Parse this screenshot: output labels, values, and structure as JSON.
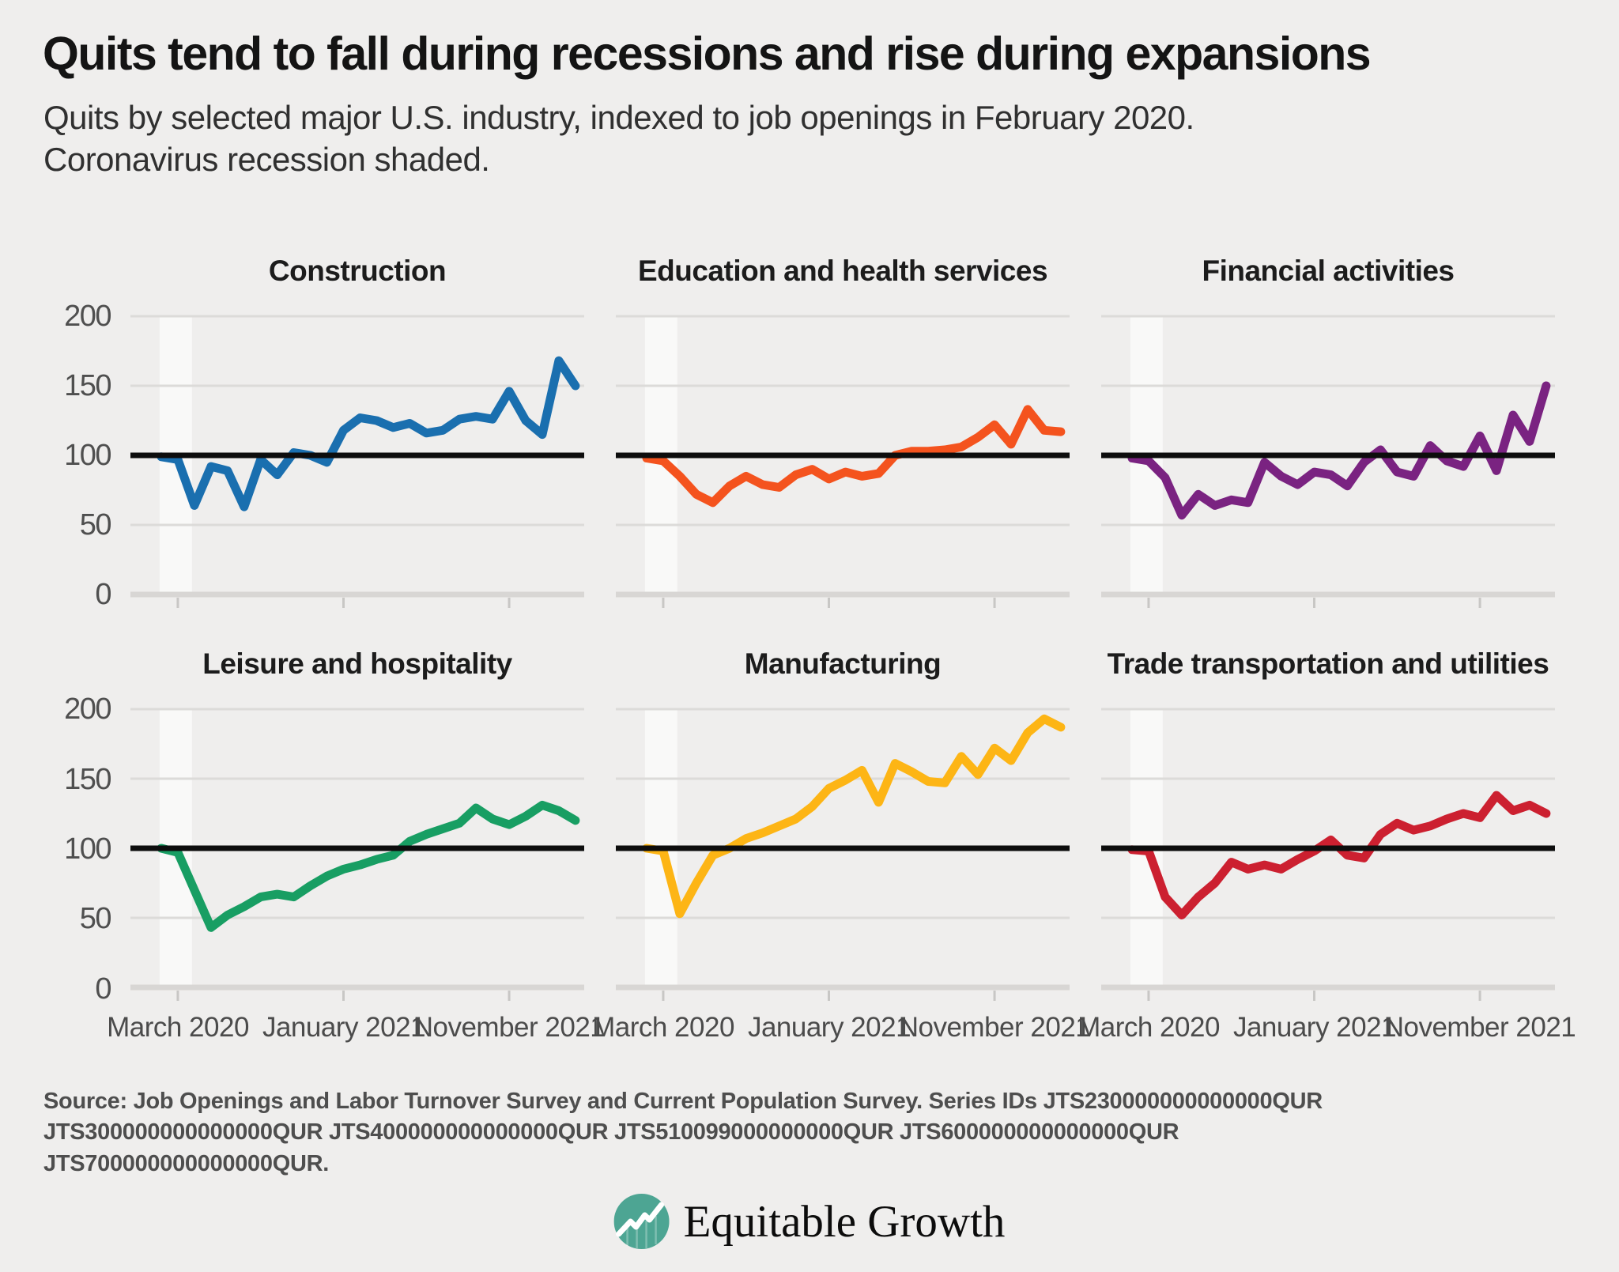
{
  "header": {
    "title": "Quits tend to fall during recessions and rise during expansions",
    "subtitle_line1": "Quits by selected major U.S. industry, indexed to job openings in February 2020.",
    "subtitle_line2": "Coronavirus recession shaded."
  },
  "axis": {
    "y_ticks": [
      "200",
      "150",
      "100",
      "50",
      "0"
    ],
    "x_ticks": [
      "March 2020",
      "January 2021",
      "November 2021"
    ]
  },
  "colors": {
    "background": "#efeeed",
    "gridline": "#dcdbd9",
    "zero_axis": "#d8d6d4",
    "tick": "#c8c7c5",
    "baseline": "#0d0d0d",
    "recession_band": "#f9f9f8",
    "logo_teal": "#4da593"
  },
  "chart_config": {
    "ylim": [
      0,
      200
    ],
    "y_gridlines": [
      0,
      50,
      100,
      150,
      200
    ],
    "baseline_value": 100,
    "x_start": "February 2020",
    "x_end": "March 2022",
    "frequency": "monthly",
    "x_tick_month_indices": [
      1,
      11,
      21
    ],
    "recession_band_months": [
      -0.1,
      1.85
    ],
    "grid": "horizontal only",
    "legend": "none"
  },
  "chart_data": [
    {
      "type": "line",
      "title": "Construction",
      "color": "#1a6faf",
      "values": [
        99,
        97,
        64,
        92,
        89,
        63,
        97,
        86,
        102,
        100,
        95,
        118,
        127,
        125,
        120,
        123,
        116,
        118,
        126,
        128,
        126,
        146,
        125,
        115,
        168,
        150
      ]
    },
    {
      "type": "line",
      "title": "Education and health services",
      "color": "#f4531e",
      "values": [
        98,
        96,
        85,
        72,
        66,
        78,
        85,
        79,
        77,
        86,
        90,
        83,
        88,
        85,
        87,
        100,
        103,
        103,
        104,
        106,
        113,
        122,
        108,
        133,
        118,
        117
      ]
    },
    {
      "type": "line",
      "title": "Financial activities",
      "color": "#7a2381",
      "values": [
        98,
        96,
        84,
        57,
        72,
        64,
        68,
        66,
        95,
        85,
        79,
        88,
        86,
        78,
        95,
        104,
        88,
        85,
        107,
        96,
        92,
        114,
        89,
        129,
        110,
        150
      ]
    },
    {
      "type": "line",
      "title": "Leisure and hospitality",
      "color": "#189e63",
      "values": [
        100,
        97,
        70,
        43,
        52,
        58,
        65,
        67,
        65,
        73,
        80,
        85,
        88,
        92,
        95,
        105,
        110,
        114,
        118,
        129,
        121,
        117,
        123,
        131,
        127,
        120
      ]
    },
    {
      "type": "line",
      "title": "Manufacturing",
      "color": "#fdb515",
      "values": [
        100,
        98,
        53,
        75,
        95,
        100,
        107,
        111,
        116,
        121,
        130,
        143,
        149,
        156,
        133,
        161,
        155,
        148,
        147,
        166,
        153,
        172,
        163,
        183,
        193,
        187
      ]
    },
    {
      "type": "line",
      "title": "Trade transportation and utilities",
      "color": "#cc2030",
      "values": [
        99,
        98,
        65,
        52,
        65,
        75,
        90,
        85,
        88,
        85,
        92,
        98,
        106,
        95,
        93,
        110,
        118,
        113,
        116,
        121,
        125,
        122,
        138,
        127,
        131,
        125
      ]
    }
  ],
  "source": {
    "line1": "Source: Job Openings and Labor Turnover Survey and Current Population Survey. Series IDs JTS230000000000000QUR",
    "line2": "JTS300000000000000QUR JTS400000000000000QUR JTS510099000000000QUR JTS600000000000000QUR",
    "line3": "JTS700000000000000QUR."
  },
  "logo": {
    "text": "Equitable Growth"
  }
}
